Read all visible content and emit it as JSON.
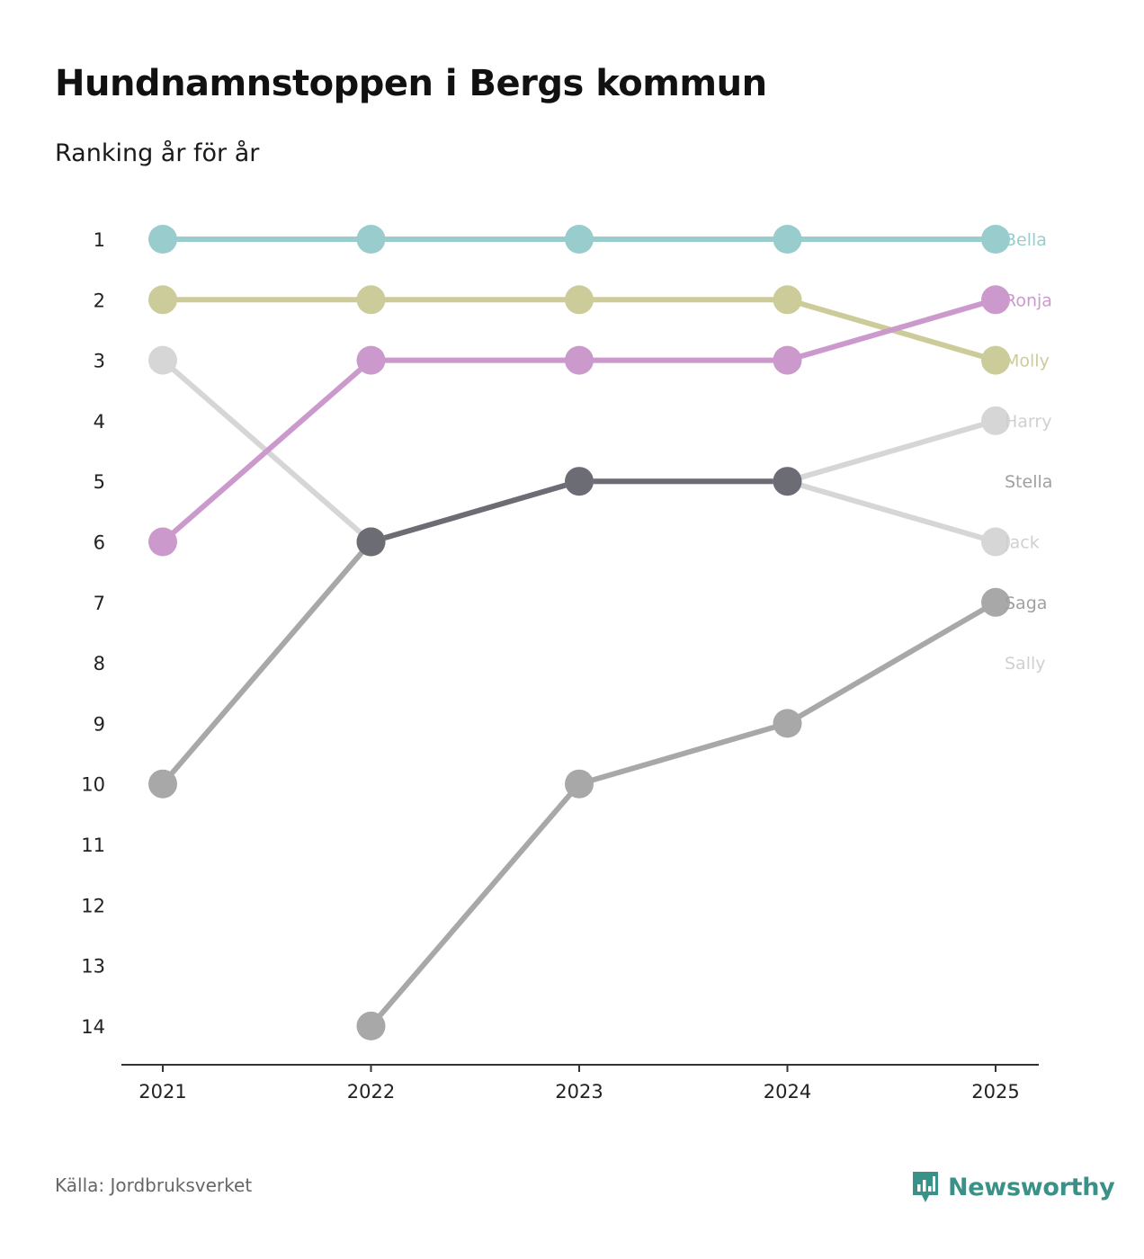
{
  "title": "Hundnamnstoppen i Bergs kommun",
  "subtitle": "Ranking år för år",
  "source": "Källa: Jordbruksverket",
  "brand": {
    "name": "Newsworthy",
    "icon": "newsworthy-logo-icon",
    "color": "#3a9188"
  },
  "chart_data": {
    "type": "line",
    "title": "Hundnamnstoppen i Bergs kommun",
    "subtitle": "Ranking år för år",
    "xlabel": "",
    "ylabel": "",
    "x": [
      "2021",
      "2022",
      "2023",
      "2024",
      "2025"
    ],
    "yticks": [
      "1",
      "2",
      "3",
      "4",
      "5",
      "6",
      "7",
      "8",
      "9",
      "10",
      "11",
      "12",
      "13",
      "14"
    ],
    "ylim": [
      1,
      14
    ],
    "y_inverted": true,
    "grid": false,
    "series": [
      {
        "name": "Sally",
        "color": "#d6d6d6",
        "values": [
          3,
          6,
          null,
          null,
          null
        ]
      },
      {
        "name": "Saga",
        "color": "#a8a8a8",
        "values": [
          null,
          14,
          10,
          9,
          7
        ]
      },
      {
        "name": "Jack",
        "color": "#d6d6d6",
        "values": [
          null,
          null,
          null,
          5,
          6
        ]
      },
      {
        "name": "Harry",
        "color": "#d6d6d6",
        "values": [
          null,
          6,
          5,
          5,
          4
        ]
      },
      {
        "name": "Stella",
        "color": "#a8a8a8",
        "values": [
          10,
          6,
          null,
          null,
          null
        ]
      },
      {
        "name": "Stella (rank 5)",
        "color": "#6c6c74",
        "values": [
          null,
          6,
          5,
          5,
          null
        ]
      },
      {
        "name": "Molly",
        "color": "#cccc9a",
        "values": [
          2,
          2,
          2,
          2,
          3
        ]
      },
      {
        "name": "Ronja",
        "color": "#cc99cc",
        "values": [
          6,
          3,
          3,
          3,
          2
        ]
      },
      {
        "name": "Bella",
        "color": "#99cccc",
        "values": [
          1,
          1,
          1,
          1,
          1
        ]
      }
    ],
    "end_labels": [
      {
        "name": "Bella",
        "rank": 1,
        "color": "#99cccc"
      },
      {
        "name": "Ronja",
        "rank": 2,
        "color": "#cc99cc"
      },
      {
        "name": "Molly",
        "rank": 3,
        "color": "#cccc9a"
      },
      {
        "name": "Harry",
        "rank": 4,
        "color": "#d0d0d0"
      },
      {
        "name": "Stella",
        "rank": 5,
        "color": "#a0a0a0"
      },
      {
        "name": "Jack",
        "rank": 6,
        "color": "#d0d0d0"
      },
      {
        "name": "Saga",
        "rank": 7,
        "color": "#a0a0a0"
      },
      {
        "name": "Sally",
        "rank": 8,
        "color": "#d0d0d0"
      }
    ]
  }
}
